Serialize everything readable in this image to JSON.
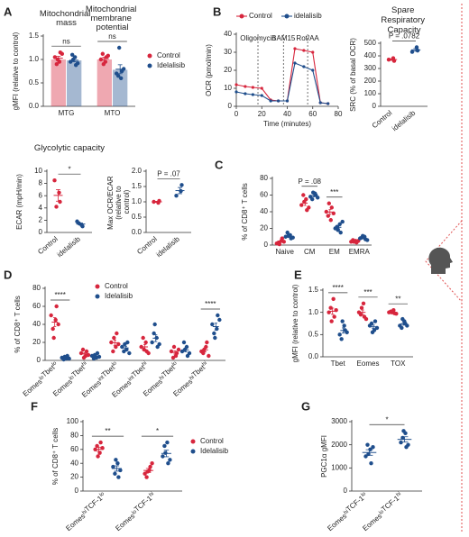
{
  "chart_data": [
    {
      "type": "bar",
      "panel": "A",
      "group_titles": [
        "Mitochondrial mass",
        "Mitochondrial membrane potential"
      ],
      "categories": [
        "MTG",
        "MTO"
      ],
      "ylabel": "gMFI (relative to control)",
      "ylim": [
        0,
        1.5
      ],
      "yticks": [
        {
          "value": 0,
          "label": "0.0"
        },
        {
          "value": 0.5,
          "label": "0.5"
        },
        {
          "value": 1,
          "label": "1.0"
        },
        {
          "value": 1.5,
          "label": "1.5"
        }
      ],
      "series": [
        {
          "name": "Control",
          "color": "#d7263d",
          "values": [
            1.0,
            1.0
          ],
          "points": [
            [
              1.05,
              0.95,
              1.15,
              0.9,
              1.0,
              1.12
            ],
            [
              1.0,
              0.95,
              1.05,
              1.12,
              0.9,
              1.08
            ]
          ]
        },
        {
          "name": "Idelalisib",
          "color": "#1f4e8c",
          "values": [
            0.98,
            0.78
          ],
          "points": [
            [
              0.95,
              1.05,
              0.88,
              1.1,
              1.0,
              0.92
            ],
            [
              0.7,
              0.6,
              0.75,
              0.65,
              1.25,
              0.8
            ]
          ]
        }
      ],
      "annotations": [
        {
          "text": "ns",
          "from": "MTG",
          "to": "MTG"
        },
        {
          "text": "ns",
          "from": "MTO",
          "to": "MTO"
        }
      ]
    },
    {
      "type": "line",
      "panel": "B",
      "xlabel": "Time (minutes)",
      "ylabel": "OCR (pmol/min)",
      "x": [
        0,
        7,
        13,
        20,
        27,
        33,
        40,
        46,
        53,
        60,
        66,
        72
      ],
      "xlim": [
        0,
        80
      ],
      "xticks": [
        0,
        20,
        40,
        60,
        80
      ],
      "ylim": [
        0,
        40
      ],
      "yticks": [
        0,
        10,
        20,
        30,
        40
      ],
      "series": [
        {
          "name": "Control",
          "color": "#d7263d",
          "values": [
            12,
            11,
            10.5,
            10,
            3.5,
            3,
            3,
            32,
            31,
            30,
            2,
            1.5
          ]
        },
        {
          "name": "idelalisib",
          "color": "#1f4e8c",
          "values": [
            8,
            7,
            6.5,
            6,
            3,
            3,
            3,
            24,
            22,
            20,
            2,
            1.5
          ]
        }
      ],
      "injections": [
        {
          "label": "Oligomycin",
          "x": 17
        },
        {
          "label": "BAM15",
          "x": 37
        },
        {
          "label": "Rot/AA",
          "x": 56
        }
      ]
    },
    {
      "type": "dot",
      "title": "Spare Respiratory Capacity",
      "ylabel": "SRC (% of basal OCR)",
      "categories": [
        "Control",
        "idelalisib"
      ],
      "colors": [
        "#d7263d",
        "#1f4e8c"
      ],
      "values": [
        [
          370,
          382,
          360
        ],
        [
          432,
          468,
          442
        ]
      ],
      "ylim": [
        0,
        500
      ],
      "yticks": [
        0,
        100,
        200,
        300,
        400,
        500
      ],
      "annotations": [
        {
          "text": "P = .0782",
          "from": "Control",
          "to": "idelalisib"
        }
      ]
    },
    {
      "type": "dot",
      "title": "Glycolytic capacity",
      "ylabel": "ECAR (mpH/min)",
      "categories": [
        "Control",
        "idelalisib"
      ],
      "colors": [
        "#d7263d",
        "#1f4e8c"
      ],
      "values": [
        [
          8.5,
          6.5,
          5,
          4.2
        ],
        [
          1.8,
          1.2,
          1.0,
          1.5
        ]
      ],
      "ylim": [
        0,
        10
      ],
      "yticks": [
        0,
        2,
        4,
        6,
        8,
        10
      ],
      "annotations": [
        {
          "text": "*",
          "from": "Control",
          "to": "idelalisib"
        }
      ]
    },
    {
      "type": "dot",
      "ylabel": "Max OCR/ECAR (relative to control)",
      "categories": [
        "Control",
        "idelalisib"
      ],
      "colors": [
        "#d7263d",
        "#1f4e8c"
      ],
      "values": [
        [
          1.0,
          0.97,
          1.03
        ],
        [
          1.2,
          1.35,
          1.55
        ]
      ],
      "ylim": [
        0,
        2
      ],
      "yticks": [
        {
          "value": 0,
          "label": "0.0"
        },
        {
          "value": 0.5,
          "label": "0.5"
        },
        {
          "value": 1,
          "label": "1.0"
        },
        {
          "value": 1.5,
          "label": "1.5"
        },
        {
          "value": 2,
          "label": "2.0"
        }
      ],
      "annotations": [
        {
          "text": "P = .07",
          "from": "Control",
          "to": "idelalisib"
        }
      ]
    },
    {
      "type": "dot",
      "panel": "C",
      "ylabel": "% of CD8⁺ T cells",
      "categories": [
        "Naive",
        "CM",
        "EM",
        "EMRA"
      ],
      "ylim": [
        0,
        80
      ],
      "yticks": [
        0,
        20,
        40,
        60,
        80
      ],
      "series": [
        {
          "color": "#d7263d",
          "values": [
            [
              2,
              5,
              8,
              3,
              1,
              4
            ],
            [
              48,
              55,
              42,
              60,
              52,
              45
            ],
            [
              40,
              30,
              45,
              35,
              50,
              38
            ],
            [
              4,
              5,
              3,
              6,
              4,
              5
            ]
          ]
        },
        {
          "color": "#1f4e8c",
          "values": [
            [
              10,
              12,
              8,
              15,
              11,
              9
            ],
            [
              58,
              62,
              60,
              55,
              63,
              57
            ],
            [
              20,
              25,
              15,
              22,
              18,
              28
            ],
            [
              8,
              10,
              7,
              9,
              11,
              6
            ]
          ]
        }
      ],
      "annotations": [
        {
          "text": "P = .08",
          "from": "CM",
          "to": "CM"
        },
        {
          "text": "***",
          "from": "EM",
          "to": "EM"
        }
      ]
    },
    {
      "type": "dot",
      "panel": "D",
      "ylabel": "% of CD8⁺ T cells",
      "categories": [
        "EomesloTbetlo",
        "EomesloTbethi",
        "EomesintTbetlo",
        "EomesintTbethi",
        "EomeshiTbetlo",
        "EomeshiTbethi"
      ],
      "ylim": [
        0,
        80
      ],
      "yticks": [
        0,
        20,
        40,
        60,
        80
      ],
      "series": [
        {
          "name": "Control",
          "color": "#d7263d",
          "values": [
            [
              50,
              45,
              60,
              35,
              25,
              40
            ],
            [
              8,
              5,
              10,
              12,
              3,
              6
            ],
            [
              20,
              15,
              30,
              10,
              25,
              18
            ],
            [
              15,
              20,
              10,
              25,
              12,
              8
            ],
            [
              10,
              5,
              8,
              3,
              15,
              12
            ],
            [
              10,
              15,
              20,
              8,
              12,
              5
            ]
          ]
        },
        {
          "name": "Idelalisib",
          "color": "#1f4e8c",
          "values": [
            [
              3,
              2,
              5,
              1,
              4,
              2
            ],
            [
              5,
              3,
              8,
              2,
              6,
              4
            ],
            [
              15,
              12,
              20,
              10,
              18,
              8
            ],
            [
              20,
              25,
              15,
              30,
              40,
              18
            ],
            [
              10,
              15,
              5,
              20,
              12,
              8
            ],
            [
              40,
              35,
              50,
              30,
              25,
              45
            ]
          ]
        }
      ],
      "annotations": [
        {
          "text": "****",
          "from": "EomesloTbetlo",
          "to": "EomesloTbetlo"
        },
        {
          "text": "****",
          "from": "EomeshiTbethi",
          "to": "EomeshiTbethi"
        }
      ]
    },
    {
      "type": "dot",
      "panel": "E",
      "ylabel": "gMFI (relative to control)",
      "categories": [
        "Tbet",
        "Eomes",
        "TOX"
      ],
      "ylim": [
        0,
        1.5
      ],
      "yticks": [
        {
          "value": 0,
          "label": "0.0"
        },
        {
          "value": 0.5,
          "label": "0.5"
        },
        {
          "value": 1,
          "label": "1.0"
        },
        {
          "value": 1.5,
          "label": "1.5"
        }
      ],
      "series": [
        {
          "color": "#d7263d",
          "values": [
            [
              1.0,
              1.3,
              0.9,
              1.1,
              0.8,
              1.05
            ],
            [
              1.0,
              1.2,
              0.9,
              0.95,
              1.1,
              0.85
            ],
            [
              1.0,
              1.05,
              0.98,
              1.02,
              1.0,
              0.97
            ]
          ]
        },
        {
          "color": "#1f4e8c",
          "values": [
            [
              0.5,
              0.7,
              0.6,
              0.4,
              0.8,
              0.55
            ],
            [
              0.7,
              0.6,
              0.8,
              0.75,
              0.55,
              0.65
            ],
            [
              0.7,
              0.8,
              0.75,
              0.65,
              0.85,
              0.7
            ]
          ]
        }
      ],
      "annotations": [
        {
          "text": "****",
          "from": "Tbet",
          "to": "Tbet"
        },
        {
          "text": "***",
          "from": "Eomes",
          "to": "Eomes"
        },
        {
          "text": "**",
          "from": "TOX",
          "to": "TOX"
        }
      ]
    },
    {
      "type": "dot",
      "panel": "F",
      "ylabel": "% of CD8⁺ T cells",
      "categories": [
        "EomeshiTCF-1lo",
        "EomesloTCF-1hi"
      ],
      "ylim": [
        0,
        100
      ],
      "yticks": [
        0,
        20,
        40,
        60,
        80,
        100
      ],
      "series": [
        {
          "name": "Control",
          "color": "#d7263d",
          "values": [
            [
              60,
              55,
              70,
              65,
              50,
              62
            ],
            [
              25,
              30,
              35,
              20,
              28,
              40
            ]
          ]
        },
        {
          "name": "Idelalisib",
          "color": "#1f4e8c",
          "values": [
            [
              35,
              40,
              20,
              25,
              45,
              30
            ],
            [
              50,
              70,
              40,
              65,
              55,
              45
            ]
          ]
        }
      ],
      "annotations": [
        {
          "text": "**",
          "from": "EomeshiTCF-1lo",
          "to": "EomeshiTCF-1lo"
        },
        {
          "text": "*",
          "from": "EomesloTCF-1hi",
          "to": "EomesloTCF-1hi"
        }
      ]
    },
    {
      "type": "dot",
      "panel": "G",
      "ylabel": "PGC1α gMFI",
      "categories": [
        "EomeshiTCF-1lo",
        "EomesloTCF-1hi"
      ],
      "colors": [
        "#1f4e8c",
        "#1f4e8c"
      ],
      "values": [
        [
          1500,
          1800,
          1200,
          2000,
          1600,
          1900
        ],
        [
          2100,
          2500,
          1900,
          2300,
          2600,
          2000
        ]
      ],
      "ylim": [
        0,
        3000
      ],
      "yticks": [
        0,
        1000,
        2000,
        3000
      ],
      "annotations": [
        {
          "text": "*",
          "from": "EomeshiTCF-1lo",
          "to": "EomesloTCF-1hi"
        }
      ]
    }
  ]
}
